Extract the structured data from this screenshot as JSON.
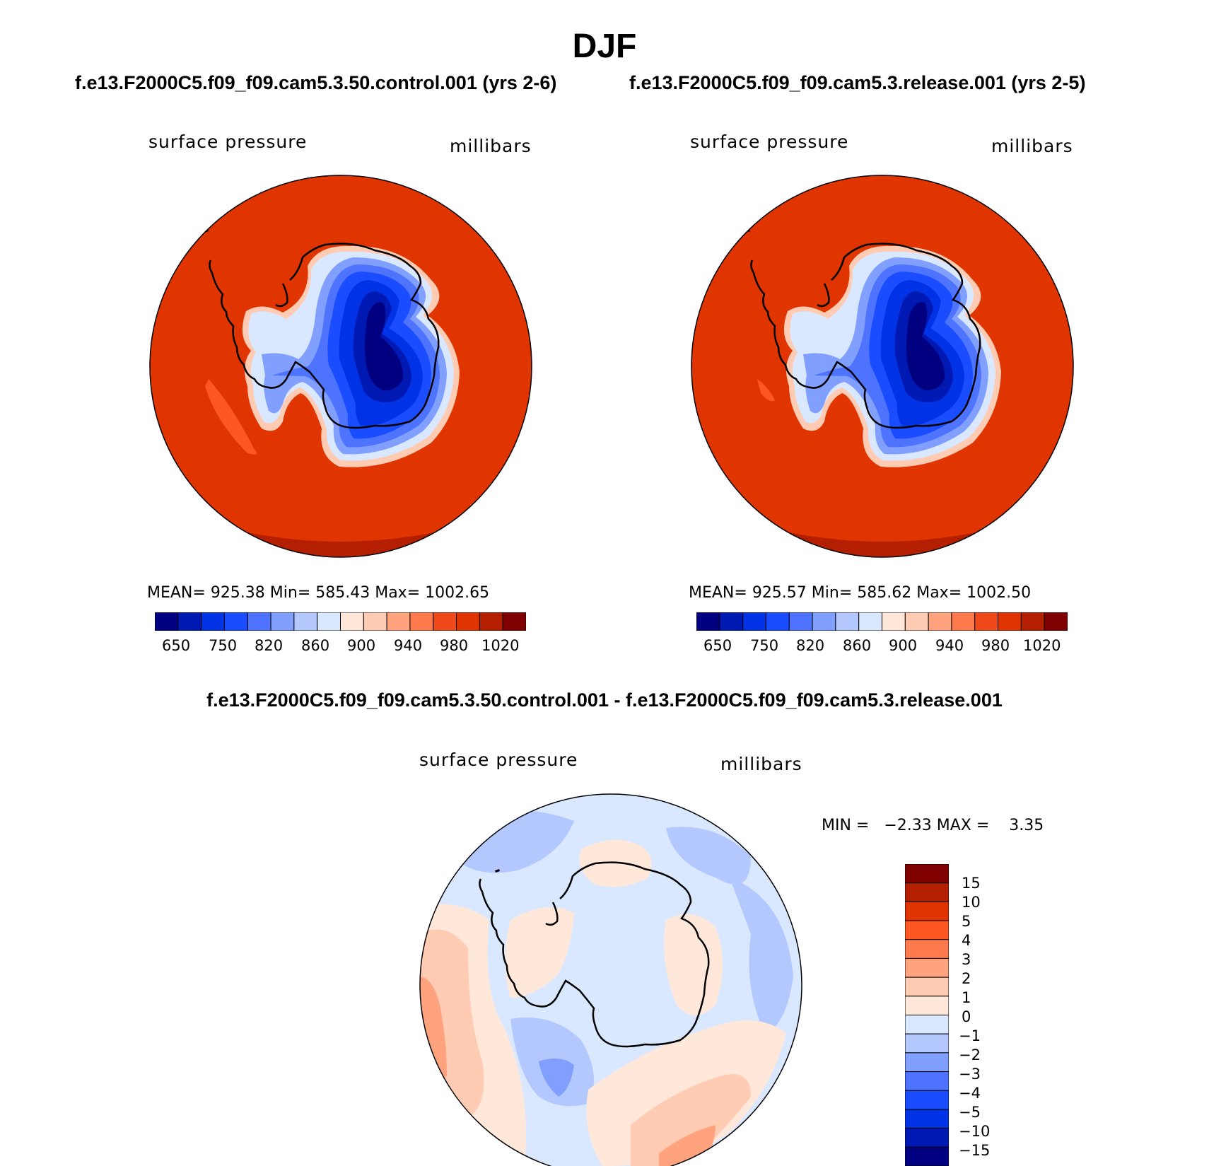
{
  "page": {
    "title": "DJF",
    "case_left": "f.e13.F2000C5.f09_f09.cam5.3.50.control.001 (yrs 2-6)",
    "case_right": "f.e13.F2000C5.f09_f09.cam5.3.release.001 (yrs 2-5)",
    "diff_title": "f.e13.F2000C5.f09_f09.cam5.3.50.control.001 - f.e13.F2000C5.f09_f09.cam5.3.release.001"
  },
  "panels": [
    {
      "variable": "surface pressure",
      "units": "millibars",
      "stats": "MEAN= 925.38   Min= 585.43   Max= 1002.65",
      "colorbar_labels": [
        "650",
        "750",
        "820",
        "860",
        "900",
        "940",
        "980",
        "1020"
      ]
    },
    {
      "variable": "surface pressure",
      "units": "millibars",
      "stats": "MEAN= 925.57   Min= 585.62   Max= 1002.50",
      "colorbar_labels": [
        "650",
        "750",
        "820",
        "860",
        "900",
        "940",
        "980",
        "1020"
      ]
    }
  ],
  "diff_panel": {
    "variable": "surface pressure",
    "units": "millibars",
    "minmax": "MIN =   −2.33 MAX =    3.35",
    "colorbar_labels": [
      "15",
      "10",
      "5",
      "4",
      "3",
      "2",
      "1",
      "0",
      "−1",
      "−2",
      "−3",
      "−4",
      "−5",
      "−10",
      "−15"
    ]
  },
  "colors": {
    "abs_scale": [
      "#000080",
      "#0019b3",
      "#0033e6",
      "#1a4dff",
      "#4d73ff",
      "#809fff",
      "#b3c8ff",
      "#d9e8ff",
      "#ffe8d9",
      "#ffcbb3",
      "#ffa37f",
      "#ff7a4d",
      "#f04a1a",
      "#e03500",
      "#b31f00",
      "#800000"
    ],
    "diff_scale": [
      "#800000",
      "#b31f00",
      "#e03500",
      "#ff5722",
      "#ff7a4d",
      "#ffa37f",
      "#ffcbb3",
      "#ffe8d9",
      "#d9e8ff",
      "#b3c8ff",
      "#809fff",
      "#4d73ff",
      "#1a4dff",
      "#0033e6",
      "#0019b3",
      "#000080"
    ],
    "ocean": "#e03500",
    "ocean_south_rim": "#b31f00",
    "diff_background": "#d9e8ff"
  }
}
